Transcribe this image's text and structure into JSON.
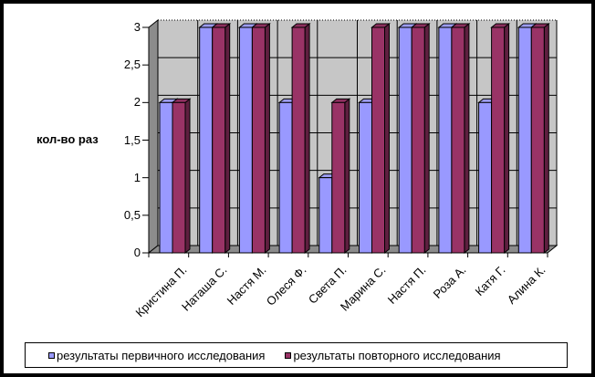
{
  "chart_data": {
    "type": "bar",
    "title": "",
    "categories": [
      "Кристина П.",
      "Наташа С.",
      "Настя М.",
      "Олеся Ф.",
      "Света П.",
      "Марина С.",
      "Настя П.",
      "Роза А.",
      "Катя Г.",
      "Алина К."
    ],
    "series": [
      {
        "name": "результаты первичного исследования",
        "color": "#9999FF",
        "values": [
          2,
          3,
          3,
          2,
          1,
          2,
          3,
          3,
          2,
          3
        ]
      },
      {
        "name": "результаты повторного исследования",
        "color": "#993366",
        "values": [
          2,
          3,
          3,
          3,
          2,
          3,
          3,
          3,
          3,
          3
        ]
      }
    ],
    "ylabel": "кол-во раз",
    "ytick_labels": [
      "0",
      "0,5",
      "1",
      "1,5",
      "2",
      "2,5",
      "3"
    ],
    "ylim": [
      0,
      3
    ],
    "grid": true,
    "legend_position": "bottom"
  },
  "colors": {
    "series1_front": "#9999FF",
    "series1_top": "#9C9CF0",
    "series1_side": "#62629E",
    "series2_front": "#993366",
    "series2_top": "#8D2F5E",
    "series2_side": "#5E1F3F",
    "wall": "#C6C6C6",
    "wall_side": "#8C8C8C",
    "floor": "#8C8C8C",
    "gridline": "#000000",
    "axis": "#000000",
    "background": "#FFFFFF",
    "text": "#000000"
  }
}
